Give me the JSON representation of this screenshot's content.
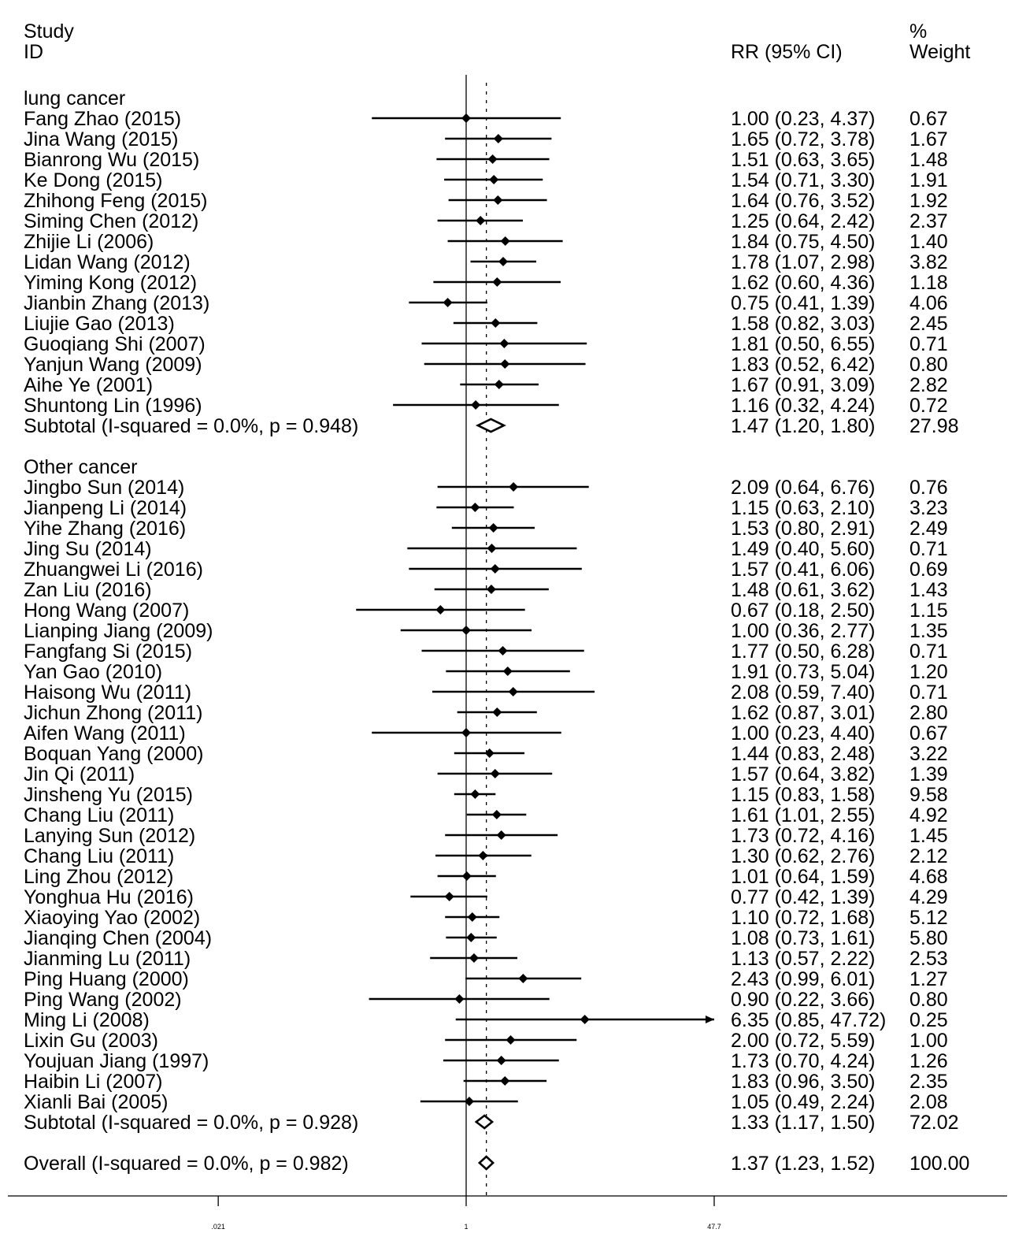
{
  "chart_data": {
    "type": "forest",
    "headers": {
      "study_line1": "Study",
      "study_line2": "ID",
      "effect": "RR (95% CI)",
      "weight_line1": "%",
      "weight_line2": "Weight"
    },
    "x_scale": "log",
    "x_ticks": [
      ".021",
      "1",
      "47.7"
    ],
    "null_line": 1,
    "overall_line": 1.37,
    "groups": [
      {
        "name": "lung cancer",
        "studies": [
          {
            "label": "Fang Zhao (2015)",
            "rr": 1.0,
            "lo": 0.23,
            "hi": 4.37,
            "ci_text": "1.00 (0.23, 4.37)",
            "weight": "0.67"
          },
          {
            "label": "Jina Wang (2015)",
            "rr": 1.65,
            "lo": 0.72,
            "hi": 3.78,
            "ci_text": "1.65 (0.72, 3.78)",
            "weight": "1.67"
          },
          {
            "label": "Bianrong Wu (2015)",
            "rr": 1.51,
            "lo": 0.63,
            "hi": 3.65,
            "ci_text": "1.51 (0.63, 3.65)",
            "weight": "1.48"
          },
          {
            "label": "Ke Dong (2015)",
            "rr": 1.54,
            "lo": 0.71,
            "hi": 3.3,
            "ci_text": "1.54 (0.71, 3.30)",
            "weight": "1.91"
          },
          {
            "label": "Zhihong Feng (2015)",
            "rr": 1.64,
            "lo": 0.76,
            "hi": 3.52,
            "ci_text": "1.64 (0.76, 3.52)",
            "weight": "1.92"
          },
          {
            "label": "Siming Chen (2012)",
            "rr": 1.25,
            "lo": 0.64,
            "hi": 2.42,
            "ci_text": "1.25 (0.64, 2.42)",
            "weight": "2.37"
          },
          {
            "label": "Zhijie Li (2006)",
            "rr": 1.84,
            "lo": 0.75,
            "hi": 4.5,
            "ci_text": "1.84 (0.75, 4.50)",
            "weight": "1.40"
          },
          {
            "label": "Lidan Wang (2012)",
            "rr": 1.78,
            "lo": 1.07,
            "hi": 2.98,
            "ci_text": "1.78 (1.07, 2.98)",
            "weight": "3.82"
          },
          {
            "label": "Yiming Kong (2012)",
            "rr": 1.62,
            "lo": 0.6,
            "hi": 4.36,
            "ci_text": "1.62 (0.60, 4.36)",
            "weight": "1.18"
          },
          {
            "label": "Jianbin Zhang (2013)",
            "rr": 0.75,
            "lo": 0.41,
            "hi": 1.39,
            "ci_text": "0.75 (0.41, 1.39)",
            "weight": "4.06"
          },
          {
            "label": "Liujie Gao (2013)",
            "rr": 1.58,
            "lo": 0.82,
            "hi": 3.03,
            "ci_text": "1.58 (0.82, 3.03)",
            "weight": "2.45"
          },
          {
            "label": "Guoqiang Shi (2007)",
            "rr": 1.81,
            "lo": 0.5,
            "hi": 6.55,
            "ci_text": "1.81 (0.50, 6.55)",
            "weight": "0.71"
          },
          {
            "label": "Yanjun Wang (2009)",
            "rr": 1.83,
            "lo": 0.52,
            "hi": 6.42,
            "ci_text": "1.83 (0.52, 6.42)",
            "weight": "0.80"
          },
          {
            "label": "Aihe Ye (2001)",
            "rr": 1.67,
            "lo": 0.91,
            "hi": 3.09,
            "ci_text": "1.67 (0.91, 3.09)",
            "weight": "2.82"
          },
          {
            "label": "Shuntong Lin (1996)",
            "rr": 1.16,
            "lo": 0.32,
            "hi": 4.24,
            "ci_text": "1.16 (0.32, 4.24)",
            "weight": "0.72"
          }
        ],
        "subtotal": {
          "label": "Subtotal  (I-squared = 0.0%, p = 0.948)",
          "rr": 1.47,
          "lo": 1.2,
          "hi": 1.8,
          "ci_text": "1.47 (1.20, 1.80)",
          "weight": "27.98"
        }
      },
      {
        "name": "Other cancer",
        "studies": [
          {
            "label": "Jingbo Sun (2014)",
            "rr": 2.09,
            "lo": 0.64,
            "hi": 6.76,
            "ci_text": "2.09 (0.64, 6.76)",
            "weight": "0.76"
          },
          {
            "label": "Jianpeng Li (2014)",
            "rr": 1.15,
            "lo": 0.63,
            "hi": 2.1,
            "ci_text": "1.15 (0.63, 2.10)",
            "weight": "3.23"
          },
          {
            "label": "Yihe Zhang (2016)",
            "rr": 1.53,
            "lo": 0.8,
            "hi": 2.91,
            "ci_text": "1.53 (0.80, 2.91)",
            "weight": "2.49"
          },
          {
            "label": "Jing Su (2014)",
            "rr": 1.49,
            "lo": 0.4,
            "hi": 5.6,
            "ci_text": "1.49 (0.40, 5.60)",
            "weight": "0.71"
          },
          {
            "label": "Zhuangwei Li (2016)",
            "rr": 1.57,
            "lo": 0.41,
            "hi": 6.06,
            "ci_text": "1.57 (0.41, 6.06)",
            "weight": "0.69"
          },
          {
            "label": "Zan Liu (2016)",
            "rr": 1.48,
            "lo": 0.61,
            "hi": 3.62,
            "ci_text": "1.48 (0.61, 3.62)",
            "weight": "1.43"
          },
          {
            "label": "Hong Wang (2007)",
            "rr": 0.67,
            "lo": 0.18,
            "hi": 2.5,
            "ci_text": "0.67 (0.18, 2.50)",
            "weight": "1.15"
          },
          {
            "label": "Lianping Jiang (2009)",
            "rr": 1.0,
            "lo": 0.36,
            "hi": 2.77,
            "ci_text": "1.00 (0.36, 2.77)",
            "weight": "1.35"
          },
          {
            "label": "Fangfang Si (2015)",
            "rr": 1.77,
            "lo": 0.5,
            "hi": 6.28,
            "ci_text": "1.77 (0.50, 6.28)",
            "weight": "0.71"
          },
          {
            "label": "Yan Gao (2010)",
            "rr": 1.91,
            "lo": 0.73,
            "hi": 5.04,
            "ci_text": "1.91 (0.73, 5.04)",
            "weight": "1.20"
          },
          {
            "label": "Haisong Wu (2011)",
            "rr": 2.08,
            "lo": 0.59,
            "hi": 7.4,
            "ci_text": "2.08 (0.59, 7.40)",
            "weight": "0.71"
          },
          {
            "label": "Jichun Zhong (2011)",
            "rr": 1.62,
            "lo": 0.87,
            "hi": 3.01,
            "ci_text": "1.62 (0.87, 3.01)",
            "weight": "2.80"
          },
          {
            "label": "Aifen Wang (2011)",
            "rr": 1.0,
            "lo": 0.23,
            "hi": 4.4,
            "ci_text": "1.00 (0.23, 4.40)",
            "weight": "0.67"
          },
          {
            "label": "Boquan Yang (2000)",
            "rr": 1.44,
            "lo": 0.83,
            "hi": 2.48,
            "ci_text": "1.44 (0.83, 2.48)",
            "weight": "3.22"
          },
          {
            "label": "Jin Qi (2011)",
            "rr": 1.57,
            "lo": 0.64,
            "hi": 3.82,
            "ci_text": "1.57 (0.64, 3.82)",
            "weight": "1.39"
          },
          {
            "label": "Jinsheng Yu (2015)",
            "rr": 1.15,
            "lo": 0.83,
            "hi": 1.58,
            "ci_text": "1.15 (0.83, 1.58)",
            "weight": "9.58"
          },
          {
            "label": "Chang Liu (2011)",
            "rr": 1.61,
            "lo": 1.01,
            "hi": 2.55,
            "ci_text": "1.61 (1.01, 2.55)",
            "weight": "4.92"
          },
          {
            "label": "Lanying Sun (2012)",
            "rr": 1.73,
            "lo": 0.72,
            "hi": 4.16,
            "ci_text": "1.73 (0.72, 4.16)",
            "weight": "1.45"
          },
          {
            "label": "Chang Liu (2011)",
            "rr": 1.3,
            "lo": 0.62,
            "hi": 2.76,
            "ci_text": "1.30 (0.62, 2.76)",
            "weight": "2.12"
          },
          {
            "label": "Ling Zhou (2012)",
            "rr": 1.01,
            "lo": 0.64,
            "hi": 1.59,
            "ci_text": "1.01 (0.64, 1.59)",
            "weight": "4.68"
          },
          {
            "label": "Yonghua Hu (2016)",
            "rr": 0.77,
            "lo": 0.42,
            "hi": 1.39,
            "ci_text": "0.77 (0.42, 1.39)",
            "weight": "4.29"
          },
          {
            "label": "Xiaoying Yao (2002)",
            "rr": 1.1,
            "lo": 0.72,
            "hi": 1.68,
            "ci_text": "1.10 (0.72, 1.68)",
            "weight": "5.12"
          },
          {
            "label": "Jianqing Chen (2004)",
            "rr": 1.08,
            "lo": 0.73,
            "hi": 1.61,
            "ci_text": "1.08 (0.73, 1.61)",
            "weight": "5.80"
          },
          {
            "label": "Jianming Lu (2011)",
            "rr": 1.13,
            "lo": 0.57,
            "hi": 2.22,
            "ci_text": "1.13 (0.57, 2.22)",
            "weight": "2.53"
          },
          {
            "label": "Ping Huang (2000)",
            "rr": 2.43,
            "lo": 0.99,
            "hi": 6.01,
            "ci_text": "2.43 (0.99, 6.01)",
            "weight": "1.27"
          },
          {
            "label": "Ping Wang (2002)",
            "rr": 0.9,
            "lo": 0.22,
            "hi": 3.66,
            "ci_text": "0.90 (0.22, 3.66)",
            "weight": "0.80"
          },
          {
            "label": "Ming Li (2008)",
            "rr": 6.35,
            "lo": 0.85,
            "hi": 47.72,
            "ci_text": "6.35 (0.85, 47.72)",
            "weight": "0.25",
            "arrow": true
          },
          {
            "label": "Lixin Gu (2003)",
            "rr": 2.0,
            "lo": 0.72,
            "hi": 5.59,
            "ci_text": "2.00 (0.72, 5.59)",
            "weight": "1.00"
          },
          {
            "label": "Youjuan Jiang (1997)",
            "rr": 1.73,
            "lo": 0.7,
            "hi": 4.24,
            "ci_text": "1.73 (0.70, 4.24)",
            "weight": "1.26"
          },
          {
            "label": "Haibin Li (2007)",
            "rr": 1.83,
            "lo": 0.96,
            "hi": 3.5,
            "ci_text": "1.83 (0.96, 3.50)",
            "weight": "2.35"
          },
          {
            "label": "Xianli Bai (2005)",
            "rr": 1.05,
            "lo": 0.49,
            "hi": 2.24,
            "ci_text": "1.05 (0.49, 2.24)",
            "weight": "2.08"
          }
        ],
        "subtotal": {
          "label": "Subtotal  (I-squared = 0.0%, p = 0.928)",
          "rr": 1.33,
          "lo": 1.17,
          "hi": 1.5,
          "ci_text": "1.33 (1.17, 1.50)",
          "weight": "72.02"
        }
      }
    ],
    "overall": {
      "label": "Overall  (I-squared = 0.0%, p = 0.982)",
      "rr": 1.37,
      "lo": 1.23,
      "hi": 1.52,
      "ci_text": "1.37 (1.23, 1.52)",
      "weight": "100.00"
    }
  }
}
